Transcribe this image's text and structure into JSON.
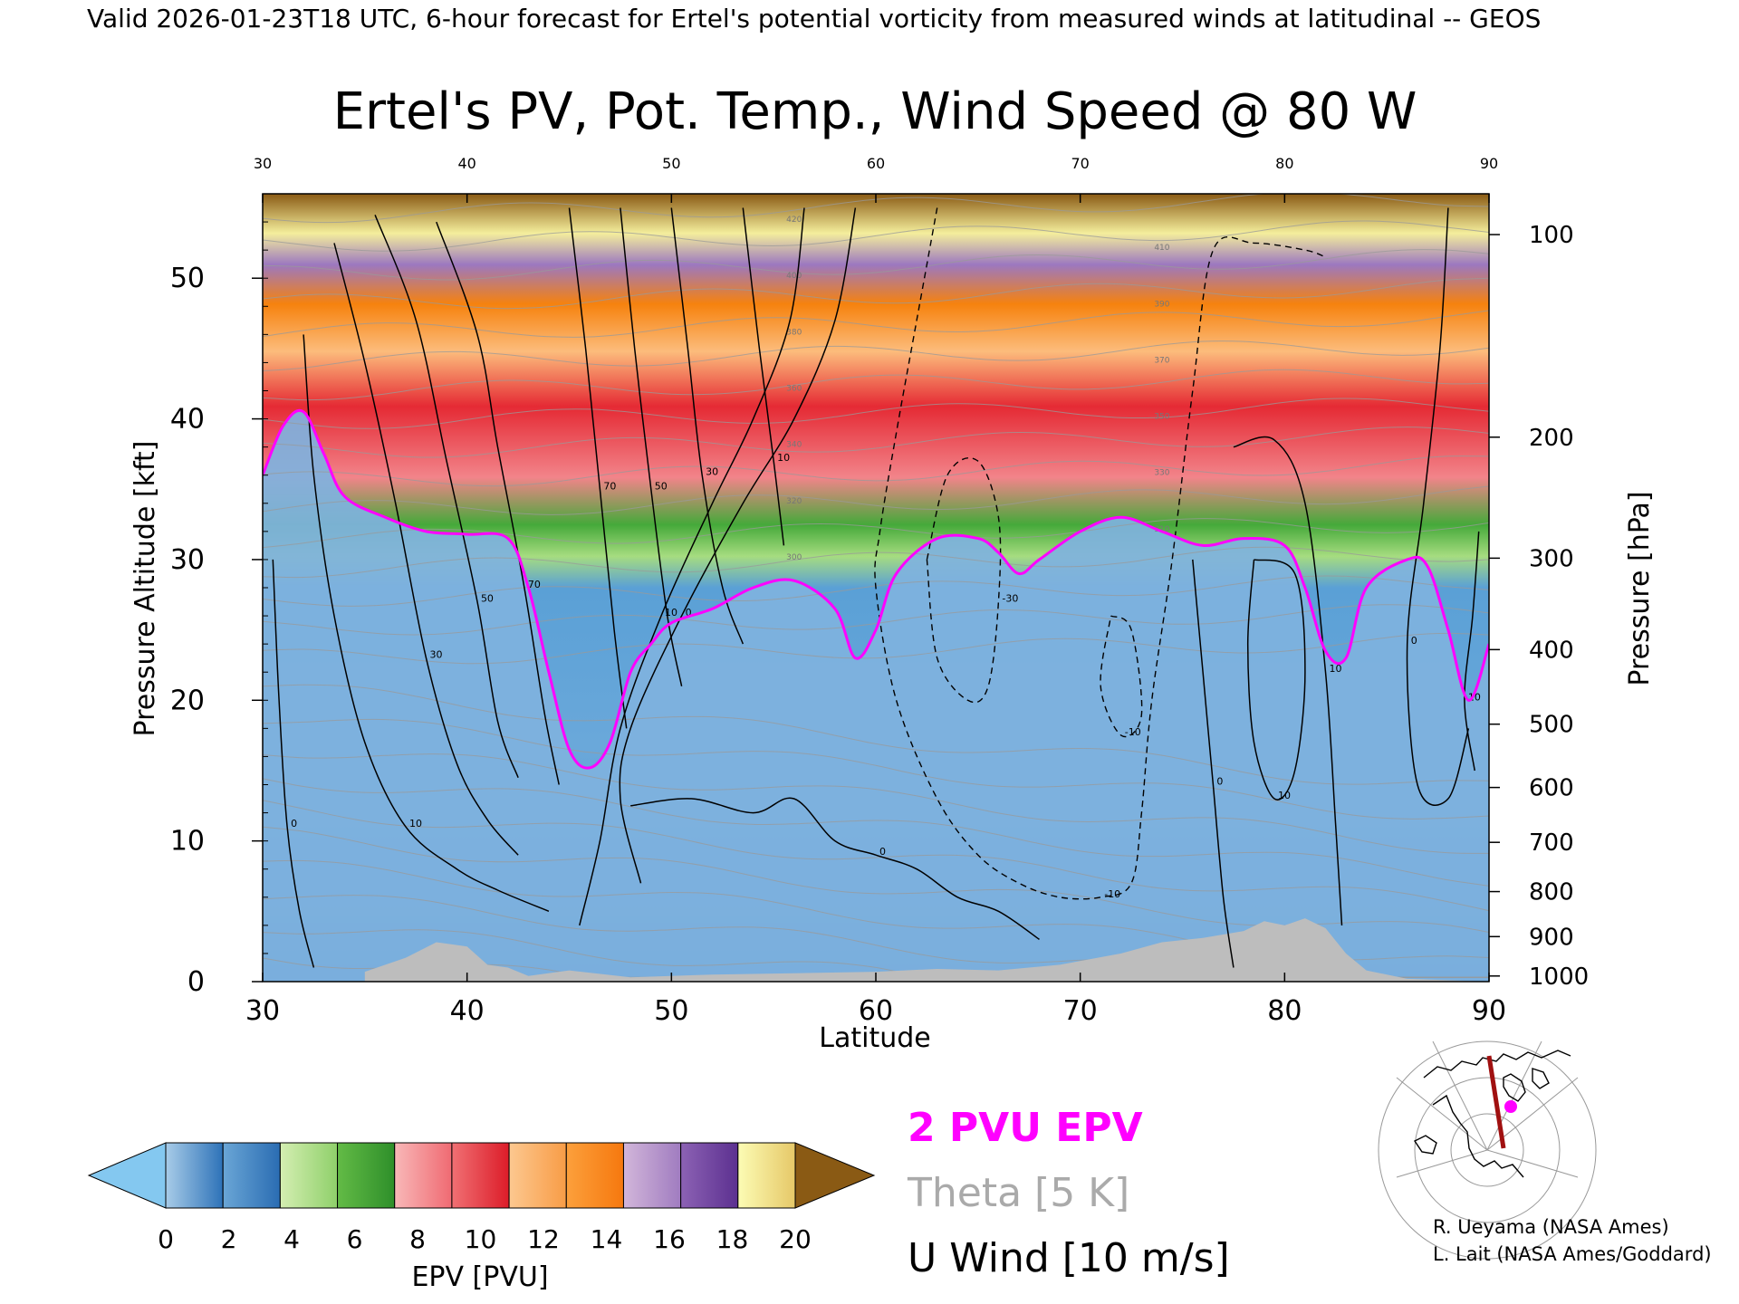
{
  "header": {
    "valid_line": "Valid 2026-01-23T18 UTC, 6-hour forecast for Ertel's potential vorticity from measured winds at latitudinal -- GEOS"
  },
  "chart_data": {
    "type": "heatmap",
    "title": "Ertel's PV, Pot. Temp., Wind Speed @ 80 W",
    "xlabel": "Latitude",
    "ylabel": "Pressure Altitude [kft]",
    "y2label": "Pressure [hPa]",
    "xlim": [
      30,
      90
    ],
    "ylim": [
      0,
      56
    ],
    "x_ticks": [
      30,
      40,
      50,
      60,
      70,
      80,
      90
    ],
    "x_ticks_top": [
      30,
      40,
      50,
      60,
      70,
      80,
      90
    ],
    "y_ticks": [
      0,
      10,
      20,
      30,
      40,
      50
    ],
    "pressure_ticks": [
      {
        "label": "100",
        "kft": 53.1
      },
      {
        "label": "200",
        "kft": 38.7
      },
      {
        "label": "300",
        "kft": 30.1
      },
      {
        "label": "400",
        "kft": 23.6
      },
      {
        "label": "500",
        "kft": 18.3
      },
      {
        "label": "600",
        "kft": 13.8
      },
      {
        "label": "700",
        "kft": 9.9
      },
      {
        "label": "800",
        "kft": 6.4
      },
      {
        "label": "900",
        "kft": 3.2
      },
      {
        "label": "1000",
        "kft": 0.4
      }
    ],
    "colorbar": {
      "label": "EPV [PVU]",
      "ticks": [
        "0",
        "2",
        "4",
        "6",
        "8",
        "10",
        "12",
        "14",
        "16",
        "18",
        "20"
      ],
      "under_color": "#84c8f0",
      "over_color": "#8a5a14",
      "bins": [
        [
          "#a8cce8",
          "#2d72b8"
        ],
        [
          "#6aa6d6",
          "#2a6cb2"
        ],
        [
          "#d4eeb2",
          "#8fd06a"
        ],
        [
          "#63bb46",
          "#2e8f2a"
        ],
        [
          "#f8b8b8",
          "#f06a72"
        ],
        [
          "#f07074",
          "#dc1c28"
        ],
        [
          "#fcc890",
          "#f89c46"
        ],
        [
          "#fca03c",
          "#f6780e"
        ],
        [
          "#d2b6da",
          "#a07cc0"
        ],
        [
          "#8c62b4",
          "#5c3090"
        ],
        [
          "#fcfcb4",
          "#e6c868"
        ]
      ]
    },
    "epv_2pvu_tropopause_kft": [
      [
        30,
        36.0
      ],
      [
        31,
        39.5
      ],
      [
        32,
        40.5
      ],
      [
        33,
        37.5
      ],
      [
        34,
        34.5
      ],
      [
        36,
        33.0
      ],
      [
        38,
        32.0
      ],
      [
        40,
        31.8
      ],
      [
        42,
        31.5
      ],
      [
        43,
        28.0
      ],
      [
        44,
        22.0
      ],
      [
        45,
        16.5
      ],
      [
        46,
        15.2
      ],
      [
        47,
        17.0
      ],
      [
        48,
        22.0
      ],
      [
        49,
        24.0
      ],
      [
        50,
        25.5
      ],
      [
        52,
        26.5
      ],
      [
        54,
        28.0
      ],
      [
        56,
        28.5
      ],
      [
        58,
        26.5
      ],
      [
        59,
        23.0
      ],
      [
        60,
        25.0
      ],
      [
        61,
        29.0
      ],
      [
        63,
        31.5
      ],
      [
        65,
        31.5
      ],
      [
        66,
        30.5
      ],
      [
        67,
        29.0
      ],
      [
        68,
        30.0
      ],
      [
        70,
        32.0
      ],
      [
        72,
        33.0
      ],
      [
        74,
        32.0
      ],
      [
        76,
        31.0
      ],
      [
        78,
        31.5
      ],
      [
        80,
        31.0
      ],
      [
        81,
        28.0
      ],
      [
        82,
        23.5
      ],
      [
        83,
        23.0
      ],
      [
        84,
        28.0
      ],
      [
        86,
        30.0
      ],
      [
        87,
        29.5
      ],
      [
        88,
        25.0
      ],
      [
        89,
        20.0
      ],
      [
        90,
        24.0
      ]
    ],
    "u_wind_contours": [
      {
        "label": "70",
        "points": [
          [
            38.5,
            54
          ],
          [
            40.5,
            46
          ],
          [
            41.5,
            38
          ],
          [
            42.8,
            28
          ],
          [
            43.8,
            19
          ],
          [
            44.5,
            14
          ]
        ]
      },
      {
        "label": "50",
        "points": [
          [
            35.5,
            54.5
          ],
          [
            37.5,
            47
          ],
          [
            39.0,
            37
          ],
          [
            40.5,
            27
          ],
          [
            41.5,
            18.5
          ],
          [
            42.5,
            14.5
          ]
        ]
      },
      {
        "label": "30",
        "points": [
          [
            33.5,
            52.5
          ],
          [
            35.0,
            44
          ],
          [
            36.5,
            34
          ],
          [
            38.0,
            23
          ],
          [
            39.5,
            15.5
          ],
          [
            41.0,
            11.5
          ],
          [
            42.5,
            9.0
          ]
        ]
      },
      {
        "label": "10",
        "points": [
          [
            32.0,
            46
          ],
          [
            32.5,
            36
          ],
          [
            33.5,
            26
          ],
          [
            35.0,
            17
          ],
          [
            37.0,
            11
          ],
          [
            39.5,
            8.0
          ],
          [
            41.5,
            6.5
          ],
          [
            44.0,
            5.0
          ]
        ]
      },
      {
        "label": "0",
        "points": [
          [
            30.5,
            30
          ],
          [
            30.8,
            20
          ],
          [
            31.2,
            11
          ],
          [
            31.8,
            5
          ],
          [
            32.5,
            1
          ]
        ]
      },
      {
        "label": "70",
        "points": [
          [
            45.0,
            55
          ],
          [
            45.8,
            45
          ],
          [
            46.5,
            35
          ],
          [
            47.2,
            25
          ],
          [
            47.8,
            18
          ]
        ]
      },
      {
        "label": "50",
        "points": [
          [
            47.5,
            55
          ],
          [
            48.2,
            45
          ],
          [
            49.0,
            35
          ],
          [
            49.8,
            26
          ],
          [
            50.5,
            21
          ]
        ]
      },
      {
        "label": "30",
        "points": [
          [
            50.0,
            55
          ],
          [
            50.8,
            45
          ],
          [
            51.5,
            36
          ],
          [
            52.5,
            28
          ],
          [
            53.5,
            24
          ]
        ]
      },
      {
        "label": "10",
        "points": [
          [
            53.5,
            55
          ],
          [
            54.3,
            45
          ],
          [
            55.0,
            37
          ],
          [
            55.5,
            31
          ]
        ]
      },
      {
        "label": "10",
        "points": [
          [
            56.5,
            55
          ],
          [
            55.8,
            47
          ],
          [
            54.0,
            40
          ],
          [
            52.0,
            34
          ],
          [
            49.5,
            26
          ],
          [
            47.5,
            18
          ],
          [
            46.5,
            10
          ],
          [
            45.5,
            4
          ]
        ]
      },
      {
        "label": "0",
        "points": [
          [
            59.0,
            55
          ],
          [
            58.0,
            47
          ],
          [
            56.0,
            40
          ],
          [
            53.5,
            34
          ],
          [
            50.5,
            26
          ],
          [
            48.0,
            18
          ],
          [
            47.5,
            13
          ],
          [
            48.5,
            7
          ]
        ]
      },
      {
        "label": "0",
        "points": [
          [
            48,
            12.5
          ],
          [
            51,
            13
          ],
          [
            54,
            12
          ],
          [
            56,
            13
          ],
          [
            58,
            10
          ],
          [
            60,
            9
          ],
          [
            62,
            8
          ],
          [
            64,
            6
          ],
          [
            66,
            5
          ],
          [
            68,
            3
          ]
        ]
      },
      {
        "label": "10",
        "points": [
          [
            77.5,
            38
          ],
          [
            79.5,
            38.5
          ],
          [
            81.0,
            34
          ],
          [
            82.0,
            22
          ],
          [
            82.5,
            11
          ],
          [
            82.8,
            4
          ]
        ]
      },
      {
        "label": "0",
        "points": [
          [
            75.5,
            30
          ],
          [
            76.0,
            22
          ],
          [
            76.5,
            14
          ],
          [
            77.0,
            6
          ],
          [
            77.5,
            1
          ]
        ]
      },
      {
        "label": "10",
        "points": [
          [
            78.5,
            30
          ],
          [
            80.5,
            29
          ],
          [
            81.0,
            22
          ],
          [
            80.5,
            15
          ],
          [
            79.5,
            13
          ],
          [
            78.5,
            17
          ],
          [
            78.2,
            24
          ],
          [
            78.5,
            30
          ]
        ]
      },
      {
        "label": "0",
        "points": [
          [
            88.0,
            55
          ],
          [
            87.6,
            45
          ],
          [
            86.8,
            34
          ],
          [
            86.0,
            24
          ],
          [
            86.5,
            14
          ],
          [
            88.0,
            13
          ],
          [
            89.0,
            18
          ]
        ]
      },
      {
        "label": "10",
        "points": [
          [
            89.5,
            32
          ],
          [
            89.2,
            26
          ],
          [
            88.8,
            20
          ],
          [
            89.3,
            15
          ]
        ]
      }
    ],
    "u_wind_dashed_contours": [
      {
        "label": "-10",
        "points": [
          [
            63.0,
            55
          ],
          [
            62.0,
            47
          ],
          [
            61.0,
            39
          ],
          [
            60.2,
            32
          ],
          [
            60.0,
            28
          ],
          [
            61.0,
            20
          ],
          [
            63.0,
            13
          ],
          [
            65.0,
            9
          ],
          [
            67.0,
            7
          ],
          [
            69.0,
            6
          ],
          [
            71.0,
            6
          ],
          [
            72.5,
            7
          ],
          [
            73.0,
            12
          ],
          [
            73.5,
            20
          ],
          [
            74.5,
            30
          ],
          [
            75.5,
            42
          ],
          [
            76.5,
            52
          ],
          [
            78.5,
            52.5
          ],
          [
            81.0,
            52
          ],
          [
            82.0,
            51.5
          ]
        ]
      },
      {
        "label": "-30",
        "points": [
          [
            62.5,
            30
          ],
          [
            63.5,
            36
          ],
          [
            65.0,
            37
          ],
          [
            66.0,
            33
          ],
          [
            66.0,
            27
          ],
          [
            65.5,
            21
          ],
          [
            64.5,
            20
          ],
          [
            63.0,
            23
          ],
          [
            62.5,
            30
          ]
        ]
      },
      {
        "label": "-10",
        "points": [
          [
            71.5,
            26
          ],
          [
            72.5,
            25
          ],
          [
            73.0,
            19
          ],
          [
            72.0,
            17.5
          ],
          [
            71.0,
            21
          ],
          [
            71.5,
            26
          ]
        ]
      }
    ],
    "theta_contour_labels": [
      "300",
      "310",
      "320",
      "330",
      "340",
      "350",
      "360",
      "370",
      "380",
      "390",
      "400",
      "410",
      "420"
    ],
    "legend": {
      "position": "bottom-center",
      "entries": [
        {
          "text": "2 PVU EPV",
          "color": "#ff00ff"
        },
        {
          "text": "Theta [5 K]",
          "color": "#aaaaaa"
        },
        {
          "text": "U Wind [10 m/s]",
          "color": "#000000"
        }
      ]
    },
    "ground_color": "#bdbdbd",
    "grid": false
  },
  "credits": {
    "line1": "R. Ueyama (NASA Ames)",
    "line2": "L. Lait (NASA Ames/Goddard)"
  },
  "locator_map": {
    "section_line_color": "#a01010",
    "marker_color": "#ff00ff"
  }
}
